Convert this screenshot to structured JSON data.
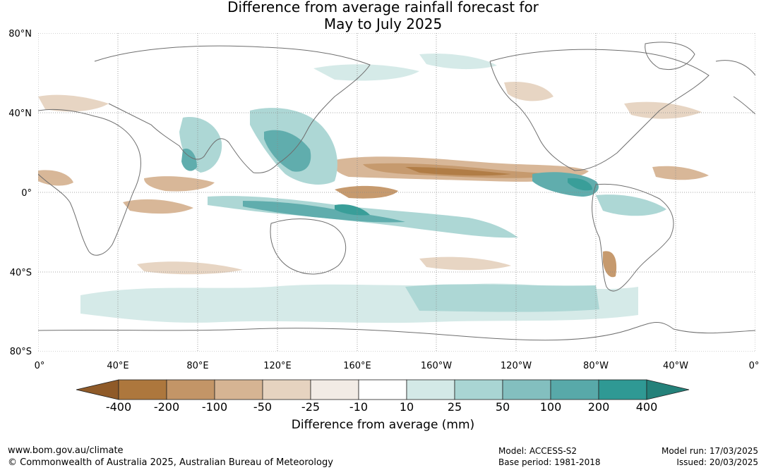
{
  "title": {
    "line1": "Difference from average rainfall forecast for",
    "line2": "May to July 2025"
  },
  "map": {
    "lat_labels": [
      "80°N",
      "40°N",
      "0°",
      "40°S",
      "80°S"
    ],
    "lon_labels": [
      "0°",
      "40°E",
      "80°E",
      "120°E",
      "160°E",
      "160°W",
      "120°W",
      "80°W",
      "40°W",
      "0°"
    ],
    "ocean_color": "#ffffff",
    "coast_color": "#6e6e6e"
  },
  "legend": {
    "title": "Difference from average (mm)",
    "labels": [
      "-400",
      "-200",
      "-100",
      "-50",
      "-25",
      "-10",
      "10",
      "25",
      "50",
      "100",
      "200",
      "400"
    ],
    "colors": [
      "#8f5a28",
      "#ad773d",
      "#c39567",
      "#d6b493",
      "#e6d3c0",
      "#f2ebe5",
      "#ffffff",
      "#d3e9e7",
      "#a9d5d3",
      "#83bfbf",
      "#58a9a9",
      "#2f9994",
      "#24817a"
    ]
  },
  "footer": {
    "url": "www.bom.gov.au/climate",
    "copyright": "© Commonwealth of Australia 2025, Australian Bureau of Meteorology",
    "model": "Model: ACCESS-S2",
    "base_period": "Base period: 1981-2018",
    "model_run": "Model run: 17/03/2025",
    "issued": "Issued: 20/03/2025"
  }
}
